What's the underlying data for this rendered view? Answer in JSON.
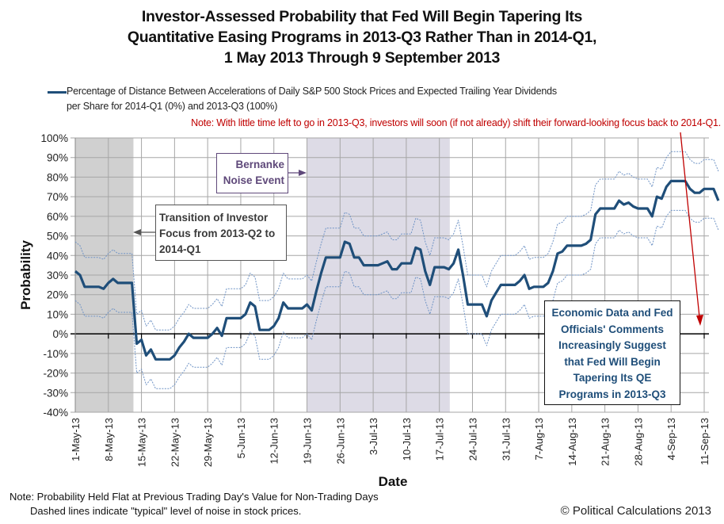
{
  "chart_data": {
    "type": "line",
    "title": [
      "Investor-Assessed Probability that Fed Will Begin  Tapering Its",
      "Quantitative Easing Programs in 2013-Q3 Rather Than in 2014-Q1,",
      "1 May 2013 Through 9 September 2013"
    ],
    "legend": {
      "placement": "top",
      "entry": "Percentage of Distance Between Accelerations of Daily S&P 500 Stock Prices and Expected Trailing Year Dividends per Share for 2014-Q1 (0%) and 2013-Q3 (100%)",
      "entry_line1": "Percentage of Distance Between Accelerations of Daily S&P 500 Stock Prices and Expected Trailing Year Dividends",
      "entry_line2": "per Share for 2014-Q1 (0%) and 2013-Q3 (100%)"
    },
    "red_note": "Note: With little  time left to go in  2013-Q3,  investors will soon (if not already)  shift their forward-looking focus back to 2014-Q1.",
    "xlabel": "Date",
    "ylabel": "Probability",
    "ylim": [
      -40,
      100
    ],
    "yticks": [
      100,
      90,
      80,
      70,
      60,
      50,
      40,
      30,
      20,
      10,
      0,
      -10,
      -20,
      -30,
      -40
    ],
    "ytick_labels": [
      "100%",
      "90%",
      "80%",
      "70%",
      "60%",
      "50%",
      "40%",
      "30%",
      "20%",
      "10%",
      "0%",
      "-10%",
      "-20%",
      "-30%",
      "-40%"
    ],
    "x_start": "1-May-13",
    "x_range_days": [
      0,
      133
    ],
    "xtick_labels": [
      "1-May-13",
      "8-May-13",
      "15-May-13",
      "22-May-13",
      "29-May-13",
      "5-Jun-13",
      "12-Jun-13",
      "19-Jun-13",
      "26-Jun-13",
      "3-Jul-13",
      "10-Jul-13",
      "17-Jul-13",
      "24-Jul-13",
      "31-Jul-13",
      "7-Aug-13",
      "14-Aug-13",
      "21-Aug-13",
      "28-Aug-13",
      "4-Sep-13",
      "11-Sep-13"
    ],
    "grid": true,
    "shaded_regions": [
      {
        "name": "transition-period",
        "start_day": 0,
        "end_day": 12.3,
        "color": "#d0d0d0"
      },
      {
        "name": "bernanke-noise-event",
        "start_day": 49,
        "end_day": 79.2,
        "color": "#dddbe6"
      }
    ],
    "series": [
      {
        "name": "Probability (main)",
        "color": "#1f4e79",
        "style": "solid",
        "values": [
          32,
          30,
          24,
          24,
          24,
          24,
          23,
          26,
          28,
          26,
          26,
          26,
          26,
          -5,
          -3,
          -11,
          -8,
          -13,
          -13,
          -13,
          -13,
          -11,
          -7,
          -4,
          0,
          -2,
          -2,
          -2,
          -2,
          0,
          3,
          -1,
          8,
          8,
          8,
          8,
          10,
          16,
          14,
          2,
          2,
          2,
          4,
          8,
          16,
          13,
          13,
          13,
          13,
          15,
          12,
          22,
          31,
          39,
          39,
          39,
          39,
          47,
          46,
          39,
          39,
          35,
          35,
          35,
          35,
          36,
          37,
          33,
          33,
          36,
          36,
          36,
          44,
          43,
          32,
          25,
          34,
          34,
          34,
          33,
          36,
          43,
          30,
          15,
          15,
          15,
          15,
          9,
          17,
          21,
          25,
          25,
          25,
          25,
          27,
          30,
          23,
          24,
          24,
          24,
          26,
          32,
          41,
          42,
          45,
          45,
          45,
          45,
          46,
          48,
          61,
          64,
          64,
          64,
          64,
          68,
          66,
          67,
          65,
          64,
          64,
          64,
          60,
          70,
          69,
          75,
          78,
          78,
          78,
          78,
          74,
          72,
          72,
          74,
          74,
          74,
          68
        ]
      },
      {
        "name": "Upper noise band",
        "color": "#6f93c5",
        "style": "dashed",
        "values": [
          47,
          45,
          39,
          39,
          39,
          39,
          38,
          41,
          43,
          41,
          41,
          41,
          41,
          10,
          12,
          4,
          7,
          2,
          2,
          2,
          2,
          4,
          8,
          11,
          15,
          13,
          13,
          13,
          13,
          15,
          18,
          14,
          23,
          23,
          23,
          23,
          25,
          31,
          29,
          17,
          17,
          17,
          19,
          23,
          31,
          28,
          28,
          28,
          28,
          30,
          27,
          37,
          46,
          54,
          54,
          54,
          54,
          62,
          61,
          54,
          54,
          50,
          50,
          50,
          50,
          51,
          52,
          48,
          48,
          51,
          51,
          51,
          59,
          58,
          47,
          40,
          49,
          49,
          49,
          48,
          51,
          58,
          45,
          30,
          30,
          30,
          30,
          24,
          32,
          36,
          40,
          40,
          40,
          40,
          42,
          45,
          38,
          39,
          39,
          39,
          41,
          47,
          56,
          57,
          60,
          60,
          60,
          60,
          61,
          63,
          76,
          79,
          79,
          79,
          79,
          83,
          81,
          82,
          80,
          79,
          79,
          79,
          75,
          85,
          84,
          90,
          93,
          93,
          93,
          93,
          89,
          87,
          87,
          89,
          89,
          89,
          83
        ]
      },
      {
        "name": "Lower noise band",
        "color": "#6f93c5",
        "style": "dashed",
        "values": [
          17,
          15,
          9,
          9,
          9,
          9,
          8,
          11,
          13,
          11,
          11,
          11,
          11,
          -20,
          -18,
          -26,
          -23,
          -28,
          -28,
          -28,
          -28,
          -26,
          -22,
          -19,
          -15,
          -17,
          -17,
          -17,
          -17,
          -15,
          -12,
          -16,
          -7,
          -7,
          -7,
          -7,
          -5,
          1,
          -1,
          -13,
          -13,
          -13,
          -11,
          -7,
          1,
          -2,
          -2,
          -2,
          -2,
          0,
          -3,
          7,
          16,
          24,
          24,
          24,
          24,
          32,
          31,
          24,
          24,
          20,
          20,
          20,
          20,
          21,
          22,
          18,
          18,
          21,
          21,
          21,
          29,
          28,
          17,
          10,
          19,
          19,
          19,
          18,
          21,
          28,
          15,
          0,
          0,
          0,
          0,
          -6,
          2,
          6,
          10,
          10,
          10,
          10,
          12,
          15,
          8,
          9,
          9,
          9,
          11,
          17,
          26,
          27,
          30,
          30,
          30,
          30,
          31,
          33,
          46,
          49,
          49,
          49,
          49,
          53,
          51,
          52,
          50,
          49,
          49,
          49,
          45,
          55,
          54,
          60,
          63,
          63,
          63,
          63,
          59,
          57,
          57,
          59,
          59,
          59,
          53
        ]
      }
    ],
    "annotations": [
      {
        "name": "bernanke",
        "lines": [
          "Bernanke",
          "Noise Event"
        ],
        "arrow": "right",
        "color": "#5f497a"
      },
      {
        "name": "transition",
        "lines": [
          "Transition of Investor",
          "Focus from 2013-Q2 to",
          "2014-Q1"
        ],
        "arrow": "left",
        "color": "#404040"
      },
      {
        "name": "economic",
        "lines": [
          "Economic Data and Fed",
          "Officials' Comments",
          "Increasingly Suggest",
          "that Fed Will Begin",
          "Tapering Its QE",
          "Programs in 2013-Q3"
        ],
        "color": "#1f4e79"
      },
      {
        "name": "red-arrow",
        "meaning": "focus shifting back to 2014-Q1 (toward 0%)",
        "color": "#c00000"
      }
    ]
  },
  "footer": {
    "note_line1": "Note: Probability Held Flat at Previous Trading Day's Value for Non-Trading Days",
    "note_line2": "Dashed lines indicate \"typical\" level of noise in stock prices.",
    "copyright": "© Political Calculations 2013"
  }
}
